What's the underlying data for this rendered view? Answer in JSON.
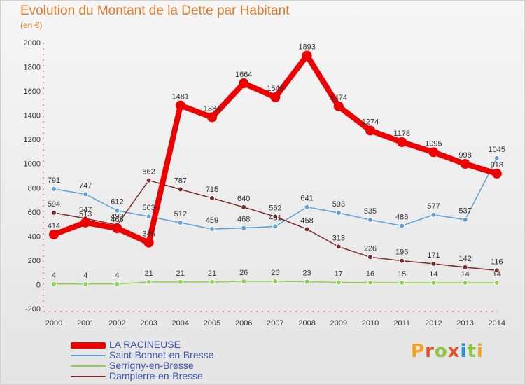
{
  "title": "Evolution du Montant de la Dette par Habitant",
  "unit": "(en €)",
  "logo": {
    "text": "Proxiti",
    "colors": [
      "#f2a31b",
      "#e2542b",
      "#8cc63f",
      "#e2542b",
      "#1e8fd6",
      "#8cc63f",
      "#f2a31b"
    ]
  },
  "chart_data": {
    "type": "line",
    "x": [
      "2000",
      "2001",
      "2002",
      "2003",
      "2004",
      "2005",
      "2006",
      "2007",
      "2008",
      "2009",
      "2010",
      "2011",
      "2012",
      "2013",
      "2014"
    ],
    "ylim": [
      -200,
      2000
    ],
    "yticks": [
      "-200",
      "0",
      "200",
      "400",
      "600",
      "800",
      "1000",
      "1200",
      "1400",
      "1600",
      "1800",
      "2000"
    ],
    "grid": false,
    "legend": "bottom-left",
    "series": [
      {
        "name": "LA RACINEUSE",
        "color": "#ee0000",
        "values": [
          414,
          513,
          465,
          346,
          1481,
          1384,
          1664,
          1549,
          1893,
          1474,
          1274,
          1178,
          1095,
          998,
          918
        ]
      },
      {
        "name": "Saint-Bonnet-en-Bresse",
        "color": "#5d9fd6",
        "values": [
          791,
          747,
          612,
          563,
          512,
          459,
          468,
          481,
          641,
          593,
          535,
          486,
          577,
          537,
          1045
        ]
      },
      {
        "name": "Serrigny-en-Bresse",
        "color": "#8ed24b",
        "values": [
          4,
          4,
          4,
          21,
          21,
          21,
          26,
          26,
          23,
          17,
          16,
          15,
          14,
          14,
          14
        ]
      },
      {
        "name": "Dampierre-en-Bresse",
        "color": "#7a2a2a",
        "values": [
          594,
          547,
          493,
          862,
          787,
          715,
          640,
          562,
          458,
          313,
          226,
          196,
          171,
          142,
          116
        ]
      }
    ]
  }
}
